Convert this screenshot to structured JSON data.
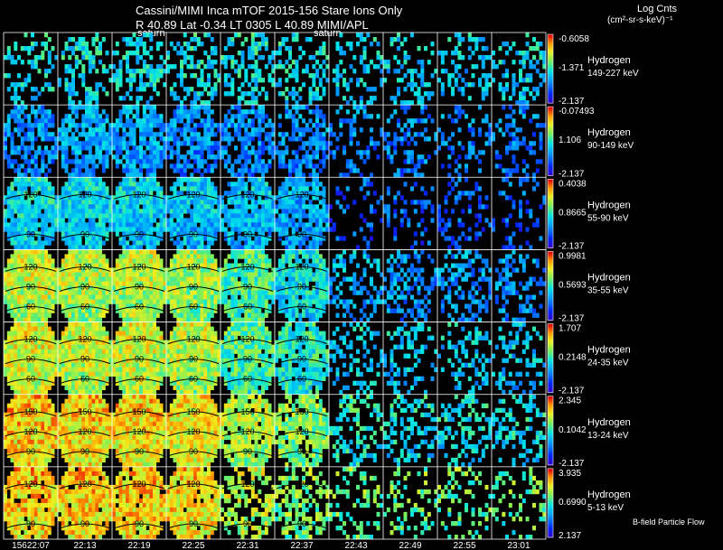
{
  "header": {
    "title": "Cassini/MIMI Inca mTOF  2015-156   Stare   Ions Only",
    "subtitle": "R          40.89  Lat -0.34  LT 0305  L          40.89  MIMI/APL",
    "saturn_label_1": "saturn",
    "saturn_label_2": "saturn"
  },
  "units": {
    "title": "Log Cnts",
    "subtitle": "(cm²-sr-s-keV)⁻¹"
  },
  "footer": {
    "bfield_label": "B-field Particle Flow",
    "day_prefix": "156"
  },
  "colors": {
    "background": "#000000",
    "grid": "#ffffff",
    "contour": "#000000"
  },
  "chart_data": {
    "type": "heatmap",
    "title": "Cassini/MIMI Inca mTOF 2015-156 Stare Ions Only",
    "x_labels": [
      "22:07",
      "22:13",
      "22:19",
      "22:25",
      "22:31",
      "22:37",
      "22:43",
      "22:49",
      "22:55",
      "23:01"
    ],
    "species": "Hydrogen",
    "rows": [
      {
        "label": "Hydrogen",
        "energy": "149-227 keV",
        "cmax": "-0.6058",
        "cmid": "-1.371",
        "cmin": "-2.137",
        "contours": [],
        "level": [
          0.45,
          0.45,
          0.45,
          0.45,
          0.45,
          0.45,
          0.42,
          0.4,
          0.4,
          0.42
        ],
        "density": [
          0.35,
          0.45,
          0.45,
          0.45,
          0.45,
          0.4,
          0.35,
          0.35,
          0.35,
          0.35
        ]
      },
      {
        "label": "Hydrogen",
        "energy": "90-149 keV",
        "cmax": "-0.07493",
        "cmid": "1.106",
        "cmin": "-2.137",
        "contours": [],
        "level": [
          0.3,
          0.35,
          0.35,
          0.3,
          0.3,
          0.3,
          0.3,
          0.28,
          0.28,
          0.28
        ],
        "density": [
          0.7,
          0.8,
          0.8,
          0.75,
          0.7,
          0.6,
          0.35,
          0.3,
          0.3,
          0.3
        ]
      },
      {
        "label": "Hydrogen",
        "energy": "55-90 keV",
        "cmax": "0.4038",
        "cmid": "0.8665",
        "cmin": "-2.137",
        "contours": [
          "120",
          "90"
        ],
        "level": [
          0.45,
          0.42,
          0.42,
          0.4,
          0.38,
          0.35,
          0.22,
          0.22,
          0.22,
          0.22
        ],
        "density": [
          0.95,
          0.95,
          0.95,
          0.95,
          0.9,
          0.85,
          0.2,
          0.25,
          0.25,
          0.25
        ]
      },
      {
        "label": "Hydrogen",
        "energy": "35-55 keV",
        "cmax": "0.9981",
        "cmid": "0.5693",
        "cmin": "-2.137",
        "contours": [
          "120",
          "90",
          "60"
        ],
        "level": [
          0.7,
          0.68,
          0.68,
          0.65,
          0.55,
          0.45,
          0.35,
          0.32,
          0.32,
          0.32
        ],
        "density": [
          1,
          1,
          1,
          1,
          0.95,
          0.9,
          0.4,
          0.45,
          0.45,
          0.4
        ]
      },
      {
        "label": "Hydrogen",
        "energy": "24-35 keV",
        "cmax": "1.707",
        "cmid": "0.2148",
        "cmin": "-2.137",
        "contours": [
          "120",
          "90",
          "60"
        ],
        "level": [
          0.72,
          0.7,
          0.7,
          0.68,
          0.55,
          0.5,
          0.42,
          0.4,
          0.4,
          0.4
        ],
        "density": [
          1,
          1,
          1,
          1,
          0.95,
          0.9,
          0.35,
          0.35,
          0.35,
          0.35
        ]
      },
      {
        "label": "Hydrogen",
        "energy": "13-24 keV",
        "cmax": "2.345",
        "cmid": "0.1042",
        "cmin": "-2.137",
        "contours": [
          "150",
          "120",
          "90"
        ],
        "level": [
          0.8,
          0.78,
          0.78,
          0.76,
          0.68,
          0.62,
          0.48,
          0.45,
          0.45,
          0.45
        ],
        "density": [
          1,
          1,
          1,
          1,
          0.9,
          0.85,
          0.4,
          0.4,
          0.4,
          0.4
        ]
      },
      {
        "label": "Hydrogen",
        "energy": "5-13 keV",
        "cmax": "3.935",
        "cmid": "0.6990",
        "cmin": "2.137",
        "contours": [
          "120",
          "90"
        ],
        "level": [
          0.8,
          0.8,
          0.8,
          0.78,
          0.68,
          0.62,
          0.6,
          0.58,
          0.58,
          0.58
        ],
        "density": [
          0.95,
          0.95,
          0.95,
          0.95,
          0.6,
          0.55,
          0.35,
          0.3,
          0.3,
          0.3
        ]
      }
    ]
  }
}
